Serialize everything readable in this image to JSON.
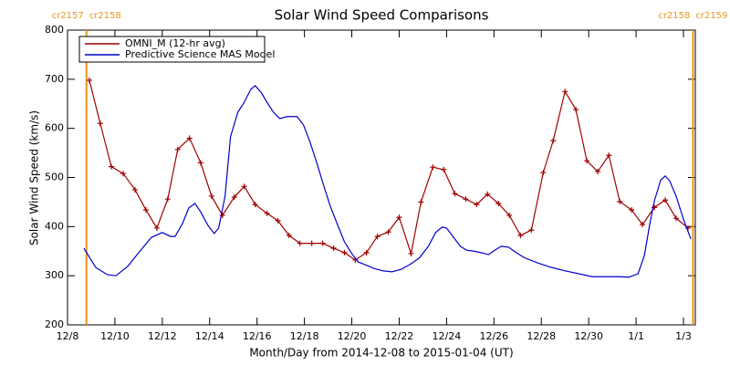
{
  "chart_data": {
    "type": "line",
    "title": "Solar Wind Speed Comparisons",
    "x_label": "Month/Day from 2014-12-08 to 2015-01-04 (UT)",
    "y_label": "Solar Wind Speed (km/s)",
    "xlim": [
      0,
      26.5
    ],
    "xticks": [
      {
        "value": 0,
        "label": "12/8"
      },
      {
        "value": 2,
        "label": "12/10"
      },
      {
        "value": 4,
        "label": "12/12"
      },
      {
        "value": 6,
        "label": "12/14"
      },
      {
        "value": 8,
        "label": "12/16"
      },
      {
        "value": 10,
        "label": "12/18"
      },
      {
        "value": 12,
        "label": "12/20"
      },
      {
        "value": 14,
        "label": "12/22"
      },
      {
        "value": 16,
        "label": "12/24"
      },
      {
        "value": 18,
        "label": "12/26"
      },
      {
        "value": 20,
        "label": "12/28"
      },
      {
        "value": 22,
        "label": "12/30"
      },
      {
        "value": 24,
        "label": "1/1"
      },
      {
        "value": 26,
        "label": "1/3"
      }
    ],
    "ylim": [
      200,
      800
    ],
    "yticks": [
      200,
      300,
      400,
      500,
      600,
      700,
      800
    ],
    "legend": "top-left",
    "markers": [
      {
        "x": 0.8,
        "labels": [
          "cr2157",
          "cr2158"
        ],
        "color": "#e8961e"
      },
      {
        "x": 26.4,
        "labels": [
          "cr2158",
          "cr2159"
        ],
        "color": "#e8961e"
      }
    ],
    "series": [
      {
        "name": "OMNI_M (12-hr avg)",
        "color": "#a00000",
        "marker": "+",
        "x": [
          0.92,
          1.38,
          1.85,
          2.35,
          2.85,
          3.31,
          3.77,
          4.23,
          4.65,
          5.15,
          5.62,
          6.08,
          6.54,
          7.04,
          7.46,
          7.92,
          8.42,
          8.88,
          9.35,
          9.81,
          10.31,
          10.77,
          11.23,
          11.69,
          12.15,
          12.62,
          13.08,
          13.54,
          14.0,
          14.5,
          14.92,
          15.42,
          15.88,
          16.35,
          16.81,
          17.27,
          17.73,
          18.19,
          18.65,
          19.12,
          19.58,
          20.08,
          20.5,
          21.0,
          21.46,
          21.92,
          22.38,
          22.85,
          23.31,
          23.81,
          24.27,
          24.77,
          25.23,
          25.69,
          26.19
        ],
        "values": [
          698,
          610,
          522,
          508,
          475,
          434,
          397,
          456,
          557,
          580,
          530,
          462,
          423,
          460,
          482,
          445,
          427,
          412,
          382,
          366,
          366,
          366,
          356,
          347,
          332,
          347,
          380,
          389,
          419,
          345,
          450,
          521,
          516,
          467,
          456,
          445,
          466,
          447,
          423,
          382,
          393,
          510,
          575,
          675,
          638,
          534,
          512,
          545,
          451,
          434,
          404,
          439,
          454,
          417,
          397
        ]
      },
      {
        "name": "Predictive Science MAS Model",
        "color": "#0000cc",
        "x": [
          0.69,
          1.19,
          1.69,
          2.04,
          2.54,
          3.04,
          3.54,
          4.0,
          4.35,
          4.54,
          4.85,
          5.12,
          5.38,
          5.62,
          5.92,
          6.19,
          6.38,
          6.65,
          6.88,
          7.19,
          7.46,
          7.73,
          7.92,
          8.19,
          8.42,
          8.69,
          8.96,
          9.27,
          9.69,
          9.96,
          10.23,
          10.54,
          10.81,
          11.08,
          11.38,
          11.69,
          12.0,
          12.27,
          12.54,
          12.92,
          13.31,
          13.69,
          14.08,
          14.46,
          14.85,
          15.23,
          15.54,
          15.81,
          16.0,
          16.27,
          16.58,
          16.85,
          17.15,
          17.46,
          17.77,
          18.04,
          18.31,
          18.62,
          18.88,
          19.27,
          19.85,
          20.42,
          21.0,
          21.58,
          22.15,
          22.73,
          23.31,
          23.69,
          24.08,
          24.35,
          24.58,
          24.77,
          25.04,
          25.23,
          25.42,
          25.69,
          26.0,
          26.31
        ],
        "values": [
          356,
          317,
          302,
          300,
          319,
          349,
          378,
          388,
          380,
          380,
          406,
          438,
          447,
          430,
          403,
          386,
          397,
          462,
          583,
          633,
          653,
          679,
          687,
          672,
          653,
          633,
          620,
          624,
          624,
          607,
          573,
          527,
          484,
          443,
          406,
          369,
          345,
          328,
          323,
          315,
          310,
          308,
          313,
          323,
          336,
          360,
          388,
          399,
          397,
          380,
          360,
          352,
          350,
          347,
          343,
          352,
          360,
          358,
          349,
          337,
          326,
          317,
          310,
          304,
          298,
          298,
          298,
          297,
          304,
          341,
          406,
          452,
          495,
          503,
          493,
          462,
          415,
          375
        ]
      }
    ]
  }
}
